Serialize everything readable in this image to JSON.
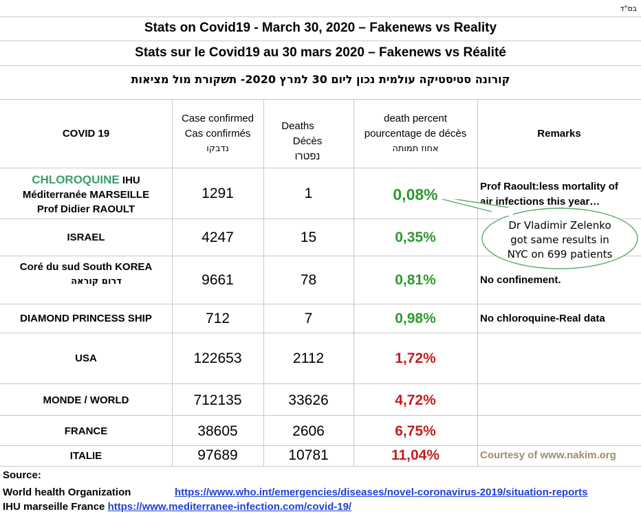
{
  "corner_mark": "בס\"ד",
  "titles": {
    "english": "Stats on Covid19 - March 30, 2020 – Fakenews vs Reality",
    "french": "Stats sur le Covid19 au 30 mars 2020 – Fakenews vs Réalité",
    "hebrew": "קורונה סטיסטיקה עולמית נכון ליום 30 למרץ 2020- תשקורת מול מציאות"
  },
  "headers": {
    "col1": "COVID 19",
    "col2": [
      "Case confirmed",
      "Cas confirmés",
      "נדבקו"
    ],
    "col3": [
      "Deaths",
      "Décès נפטרו"
    ],
    "col4": [
      "death percent",
      "pourcentage de décès",
      "אחוז תמותה"
    ],
    "col5": "Remarks"
  },
  "rows": [
    {
      "country": {
        "highlight": "CHLOROQUINE",
        "rest": " IHU",
        "line2": "Méditerranée  MARSEILLE",
        "line3": "Prof Didier RAOULT"
      },
      "cases": "1291",
      "deaths": "1",
      "percent": "0,08%",
      "remark": [
        "Prof Raoult:less mortality of",
        "air infections this year…"
      ]
    },
    {
      "country": "ISRAEL",
      "cases": "4247",
      "deaths": "15",
      "percent": "0,35%",
      "remark": ""
    },
    {
      "country": {
        "line1": "Coré du sud   South KOREA",
        "line2": "דרום קוראה"
      },
      "cases": "9661",
      "deaths": "78",
      "percent": "0,81%",
      "remark": "No confinement."
    },
    {
      "country": "DIAMOND PRINCESS SHIP",
      "cases": "712",
      "deaths": "7",
      "percent": "0,98%",
      "remark": "No chloroquine-Real data"
    },
    {
      "country": "USA",
      "cases": "122653",
      "deaths": "2112",
      "percent": "1,72%",
      "remark": ""
    },
    {
      "country": "MONDE / WORLD",
      "cases": "712135",
      "deaths": "33626",
      "percent": "4,72%",
      "remark": ""
    },
    {
      "country": "FRANCE",
      "cases": "38605",
      "deaths": "2606",
      "percent": "6,75%",
      "remark": ""
    },
    {
      "country": "ITALIE",
      "cases": "97689",
      "deaths": "10781",
      "percent": "11,04%",
      "remark": "Courtesy of www.nakim.org"
    }
  ],
  "callout": [
    "Dr Vladimir Zelenko",
    "got same results in",
    "NYC on 699 patients"
  ],
  "source": {
    "label": "Source:",
    "who_label": "World health Organization",
    "who_url": "https://www.who.int/emergencies/diseases/novel-coronavirus-2019/situation-reports",
    "ihu_label": "IHU marseille France",
    "ihu_url": "https://www.mediterranee-infection.com/covid-19/"
  },
  "colors": {
    "green": "#2e9a2e",
    "red": "#c41d1d",
    "link": "#1f3fd6",
    "callout_border": "#5aa86a"
  }
}
